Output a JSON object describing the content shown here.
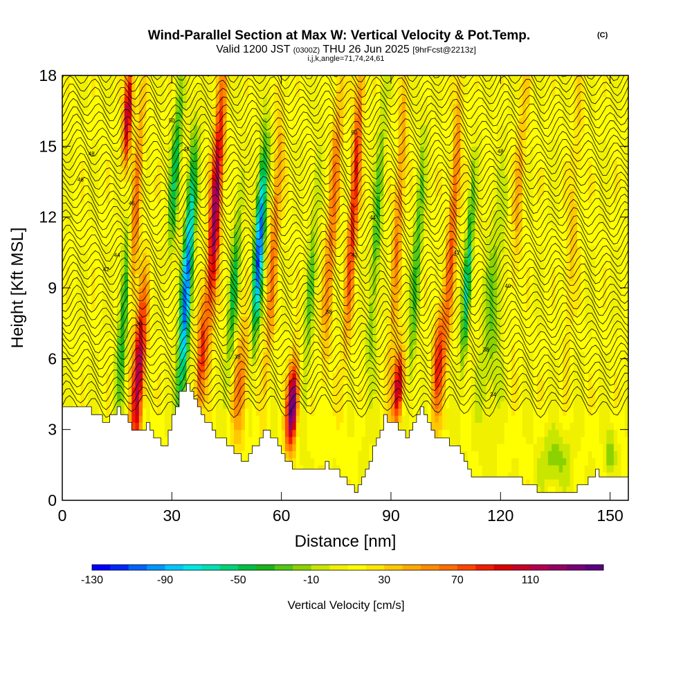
{
  "chart_data": {
    "type": "heatmap",
    "title": "Wind-Parallel Section at Max W: Vertical Velocity & Pot.Temp.",
    "title_mark": "(C)",
    "subtitle": {
      "valid": "Valid 1200 JST",
      "utc": "(0300Z)",
      "date": "THU 26 Jun 2025",
      "forecast": "[9hrFcst@2213z]"
    },
    "section_info": "i,j,k,angle=71,74,24,61",
    "xlabel": "Distance [nm]",
    "ylabel": "Height [Kft MSL]",
    "xlim": [
      0,
      155
    ],
    "ylim": [
      0,
      18
    ],
    "x_ticks": [
      "0",
      "30",
      "60",
      "90",
      "120",
      "150"
    ],
    "y_ticks": [
      "0",
      "3",
      "6",
      "9",
      "12",
      "15",
      "18"
    ],
    "colorbar": {
      "label": "Vertical Velocity [cm/s]",
      "range": [
        -130,
        150
      ],
      "step": 10,
      "tick_labels": [
        "-130",
        "-90",
        "-50",
        "-10",
        "30",
        "70",
        "110"
      ],
      "colors": [
        "#0000ff",
        "#0028ff",
        "#0064ff",
        "#0096ff",
        "#00c8ff",
        "#00e6e6",
        "#00e0b4",
        "#00d278",
        "#00c040",
        "#19b419",
        "#50c814",
        "#8cd200",
        "#c8e600",
        "#f0f000",
        "#ffff00",
        "#ffe600",
        "#ffc800",
        "#ffaa00",
        "#ff8c00",
        "#ff6e00",
        "#ff4600",
        "#f01e00",
        "#dc0000",
        "#c80028",
        "#b40050",
        "#960064",
        "#780078",
        "#5a0082"
      ]
    },
    "theta_contour_labels": [
      "32",
      "34",
      "36",
      "38",
      "40",
      "42",
      "44",
      "46",
      "48",
      "50",
      "52"
    ],
    "terrain_kft": [
      [
        0,
        4.0
      ],
      [
        5,
        4.0
      ],
      [
        10,
        3.6
      ],
      [
        12,
        3.3
      ],
      [
        15,
        3.9
      ],
      [
        17,
        3.5
      ],
      [
        20,
        2.9
      ],
      [
        23,
        3.2
      ],
      [
        25,
        2.6
      ],
      [
        28,
        2.4
      ],
      [
        30,
        3.5
      ],
      [
        32,
        4.5
      ],
      [
        34,
        5.0
      ],
      [
        36,
        4.4
      ],
      [
        38,
        3.6
      ],
      [
        42,
        2.8
      ],
      [
        46,
        2.3
      ],
      [
        48,
        1.9
      ],
      [
        50,
        1.7
      ],
      [
        53,
        2.4
      ],
      [
        55,
        3.0
      ],
      [
        58,
        2.6
      ],
      [
        60,
        1.9
      ],
      [
        62,
        1.6
      ],
      [
        64,
        1.3
      ],
      [
        68,
        1.3
      ],
      [
        72,
        1.5
      ],
      [
        76,
        1.1
      ],
      [
        78,
        0.6
      ],
      [
        80,
        0.4
      ],
      [
        82,
        1.0
      ],
      [
        84,
        1.7
      ],
      [
        86,
        2.7
      ],
      [
        88,
        3.5
      ],
      [
        90,
        3.4
      ],
      [
        92,
        3.0
      ],
      [
        94,
        2.7
      ],
      [
        96,
        3.4
      ],
      [
        98,
        4.0
      ],
      [
        100,
        3.4
      ],
      [
        102,
        2.7
      ],
      [
        104,
        2.7
      ],
      [
        108,
        2.2
      ],
      [
        110,
        1.5
      ],
      [
        112,
        1.0
      ],
      [
        116,
        1.0
      ],
      [
        124,
        1.0
      ],
      [
        126,
        0.8
      ],
      [
        128,
        0.6
      ],
      [
        130,
        0.4
      ],
      [
        140,
        0.4
      ],
      [
        142,
        0.6
      ],
      [
        144,
        1.0
      ],
      [
        146,
        1.2
      ],
      [
        148,
        1.0
      ],
      [
        155,
        1.0
      ]
    ],
    "w_cells": [
      {
        "x": 21,
        "y": 5.5,
        "sx": 1.6,
        "sy": 3.5,
        "w": 110
      },
      {
        "x": 20,
        "y": 12,
        "sx": 1.3,
        "sy": 5,
        "w": 60
      },
      {
        "x": 18,
        "y": 16.5,
        "sx": 1.2,
        "sy": 2.2,
        "w": 110
      },
      {
        "x": 17,
        "y": 8,
        "sx": 1.5,
        "sy": 4,
        "w": -60
      },
      {
        "x": 34,
        "y": 9,
        "sx": 1.4,
        "sy": 5.5,
        "w": -115
      },
      {
        "x": 31,
        "y": 14,
        "sx": 1.3,
        "sy": 3.5,
        "w": -60
      },
      {
        "x": 42,
        "y": 12.5,
        "sx": 1.5,
        "sy": 5,
        "w": 120
      },
      {
        "x": 38,
        "y": 6,
        "sx": 1.3,
        "sy": 2.5,
        "w": 70
      },
      {
        "x": 47,
        "y": 9,
        "sx": 1.3,
        "sy": 4,
        "w": -50
      },
      {
        "x": 54,
        "y": 11,
        "sx": 1.3,
        "sy": 4,
        "w": -125
      },
      {
        "x": 49,
        "y": 5,
        "sx": 2.2,
        "sy": 2.5,
        "w": 50
      },
      {
        "x": 63,
        "y": 4,
        "sx": 1.5,
        "sy": 1.8,
        "w": 140
      },
      {
        "x": 58,
        "y": 11,
        "sx": 1.3,
        "sy": 6,
        "w": 50
      },
      {
        "x": 68,
        "y": 9,
        "sx": 1.3,
        "sy": 6,
        "w": -30
      },
      {
        "x": 74,
        "y": 12,
        "sx": 1.5,
        "sy": 7,
        "w": 50
      },
      {
        "x": 80,
        "y": 13,
        "sx": 1.3,
        "sy": 6,
        "w": 80
      },
      {
        "x": 86,
        "y": 11,
        "sx": 1.3,
        "sy": 6,
        "w": -40
      },
      {
        "x": 92,
        "y": 4.8,
        "sx": 1.4,
        "sy": 1.6,
        "w": 110
      },
      {
        "x": 92,
        "y": 12,
        "sx": 1.3,
        "sy": 6,
        "w": 50
      },
      {
        "x": 97,
        "y": 10,
        "sx": 1.3,
        "sy": 6,
        "w": -40
      },
      {
        "x": 103,
        "y": 6,
        "sx": 1.6,
        "sy": 2.5,
        "w": 70
      },
      {
        "x": 107,
        "y": 12,
        "sx": 1.3,
        "sy": 6,
        "w": 60
      },
      {
        "x": 111,
        "y": 9.5,
        "sx": 1.0,
        "sy": 4,
        "w": -70
      },
      {
        "x": 118,
        "y": 8,
        "sx": 3,
        "sy": 5,
        "w": -30
      },
      {
        "x": 125,
        "y": 13,
        "sx": 1.5,
        "sy": 6,
        "w": 30
      },
      {
        "x": 135,
        "y": 1.8,
        "sx": 4,
        "sy": 1.2,
        "w": -30
      },
      {
        "x": 140,
        "y": 12,
        "sx": 1.5,
        "sy": 6,
        "w": 25
      },
      {
        "x": 150,
        "y": 2.0,
        "sx": 1.5,
        "sy": 1.0,
        "w": -30
      }
    ]
  }
}
